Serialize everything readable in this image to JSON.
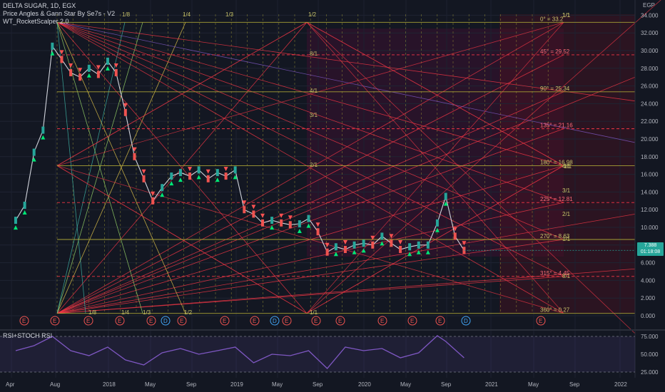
{
  "legend": {
    "symbol_line": "DELTA SUGAR, 1D, EGX",
    "indicator1": "Price Angles & Gann Star By Se7s - V2",
    "indicator2": "WT_RocketScalper 2.0"
  },
  "rsi_label": "RSI+STOCH RSI",
  "currency": "EGP",
  "price_tag": {
    "price": "7.388",
    "timer": "01:18:08"
  },
  "colors": {
    "background": "#131722",
    "candle_up": "#26a69a",
    "candle_down": "#ef5350",
    "gann_red": "#f23645",
    "gann_olive": "#a7a035",
    "rsi_line": "#7e57c2",
    "earnings_marker": "#ef5350",
    "dividend_marker": "#42a5f5"
  },
  "chart_data": [
    {
      "type": "line",
      "title": "DELTA SUGAR, 1D, EGX",
      "ylim": [
        0,
        34
      ],
      "y_ticks": [
        "0.000",
        "2.000",
        "4.000",
        "6.000",
        "8.000",
        "10.000",
        "12.000",
        "14.000",
        "16.000",
        "18.000",
        "20.000",
        "22.000",
        "24.000",
        "26.000",
        "28.000",
        "30.000",
        "32.000",
        "34.000"
      ],
      "x_ticks": [
        "Apr",
        "Aug",
        "2018",
        "May",
        "Sep",
        "2019",
        "May",
        "Sep",
        "2020",
        "May",
        "Sep",
        "2021",
        "May",
        "Sep",
        "2022"
      ],
      "price_series": {
        "name": "DELTA SUGAR",
        "x": [
          "2017-04",
          "2017-05",
          "2017-06",
          "2017-07",
          "2017-08",
          "2017-09",
          "2017-10",
          "2017-11",
          "2017-12",
          "2018-01",
          "2018-02",
          "2018-03",
          "2018-04",
          "2018-05",
          "2018-06",
          "2018-07",
          "2018-08",
          "2018-09",
          "2018-10",
          "2018-11",
          "2018-12",
          "2019-01",
          "2019-02",
          "2019-03",
          "2019-04",
          "2019-05",
          "2019-06",
          "2019-07",
          "2019-08",
          "2019-09",
          "2019-10",
          "2019-11",
          "2019-12",
          "2020-01",
          "2020-02",
          "2020-03",
          "2020-04",
          "2020-05",
          "2020-06",
          "2020-07",
          "2020-08",
          "2020-09",
          "2020-10",
          "2020-11",
          "2020-12",
          "2021-01",
          "2021-02",
          "2021-03",
          "2021-04",
          "2021-05"
        ],
        "y": [
          10.8,
          12.5,
          18.5,
          21,
          30.5,
          29,
          27.5,
          27,
          28,
          27.3,
          28.8,
          27.5,
          23,
          18,
          15.5,
          13,
          14.5,
          15.8,
          16.2,
          15.8,
          16.5,
          15.5,
          16.2,
          15.8,
          16.5,
          12,
          11.5,
          10.5,
          10.8,
          10.5,
          10.3,
          10.4,
          11,
          9.5,
          7.2,
          7.8,
          7.5,
          8,
          8.2,
          8,
          9,
          8.2,
          7.5,
          7.8,
          8,
          8,
          10.5,
          13.5,
          9,
          7.4
        ]
      },
      "gann_levels": [
        {
          "label": "0° = 33.2",
          "value": 33.2
        },
        {
          "label": "45° = 29.52",
          "value": 29.52
        },
        {
          "label": "90° = 25.34",
          "value": 25.34
        },
        {
          "label": "135° = 21.16",
          "value": 21.16
        },
        {
          "label": "180° = 16.98",
          "value": 16.98
        },
        {
          "label": "225° = 12.81",
          "value": 12.81
        },
        {
          "label": "270° = 8.63",
          "value": 8.63
        },
        {
          "label": "315° = 4.45",
          "value": 4.45
        },
        {
          "label": "360° = 0.27",
          "value": 0.27
        }
      ],
      "fan_labels": [
        "1/8",
        "1/4",
        "1/3",
        "1/2",
        "1/1",
        "8/1",
        "4/1",
        "3/1",
        "2/1",
        "1/1",
        "1/8",
        "1/4",
        "1/3",
        "1/2",
        "1/1",
        "1/1",
        "2/1",
        "3/1",
        "4/1",
        "8/1",
        "1/1"
      ],
      "event_markers": [
        "E",
        "E",
        "E",
        "E",
        "E",
        "D",
        "E",
        "E",
        "E",
        "D",
        "E",
        "E",
        "E",
        "E",
        "E",
        "E",
        "D",
        "E"
      ]
    },
    {
      "type": "line",
      "title": "RSI+STOCH RSI",
      "ylim": [
        20,
        80
      ],
      "y_ticks": [
        "25.000",
        "50.000",
        "75.000"
      ],
      "series": [
        {
          "name": "RSI",
          "x": [
            "2017-04",
            "2017-06",
            "2017-08",
            "2017-10",
            "2017-12",
            "2018-02",
            "2018-04",
            "2018-06",
            "2018-08",
            "2018-10",
            "2018-12",
            "2019-02",
            "2019-04",
            "2019-06",
            "2019-08",
            "2019-10",
            "2019-12",
            "2020-02",
            "2020-04",
            "2020-06",
            "2020-08",
            "2020-10",
            "2020-12",
            "2021-02",
            "2021-03",
            "2021-05"
          ],
          "y": [
            55,
            62,
            75,
            55,
            48,
            60,
            42,
            35,
            52,
            58,
            50,
            55,
            60,
            38,
            50,
            48,
            55,
            30,
            60,
            55,
            58,
            45,
            52,
            76,
            68,
            45
          ]
        }
      ]
    }
  ]
}
